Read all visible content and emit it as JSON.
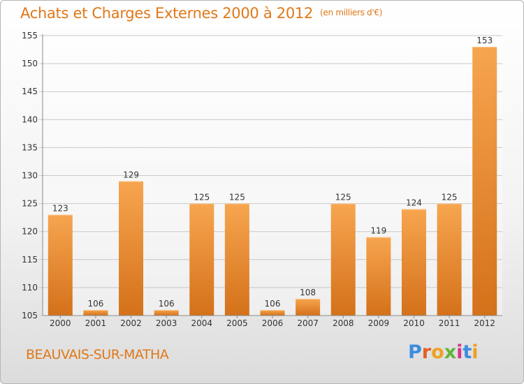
{
  "chart_data": {
    "type": "bar",
    "title": "Achats et Charges Externes 2000 à 2012",
    "subtitle": "(en milliers d'€)",
    "categories": [
      "2000",
      "2001",
      "2002",
      "2003",
      "2004",
      "2005",
      "2006",
      "2007",
      "2008",
      "2009",
      "2010",
      "2011",
      "2012"
    ],
    "values": [
      123,
      106,
      129,
      106,
      125,
      125,
      106,
      108,
      125,
      119,
      124,
      125,
      153
    ],
    "yticks": [
      105,
      110,
      115,
      120,
      125,
      130,
      135,
      140,
      145,
      150,
      155
    ],
    "ylim": [
      105,
      155
    ],
    "grid": true,
    "bar_color_top": "#f7a54f",
    "bar_color_bottom": "#d4711a"
  },
  "location": "BEAUVAIS-SUR-MATHA",
  "brand": {
    "letters": [
      "P",
      "r",
      "o",
      "x",
      "i",
      "t",
      "i"
    ]
  }
}
